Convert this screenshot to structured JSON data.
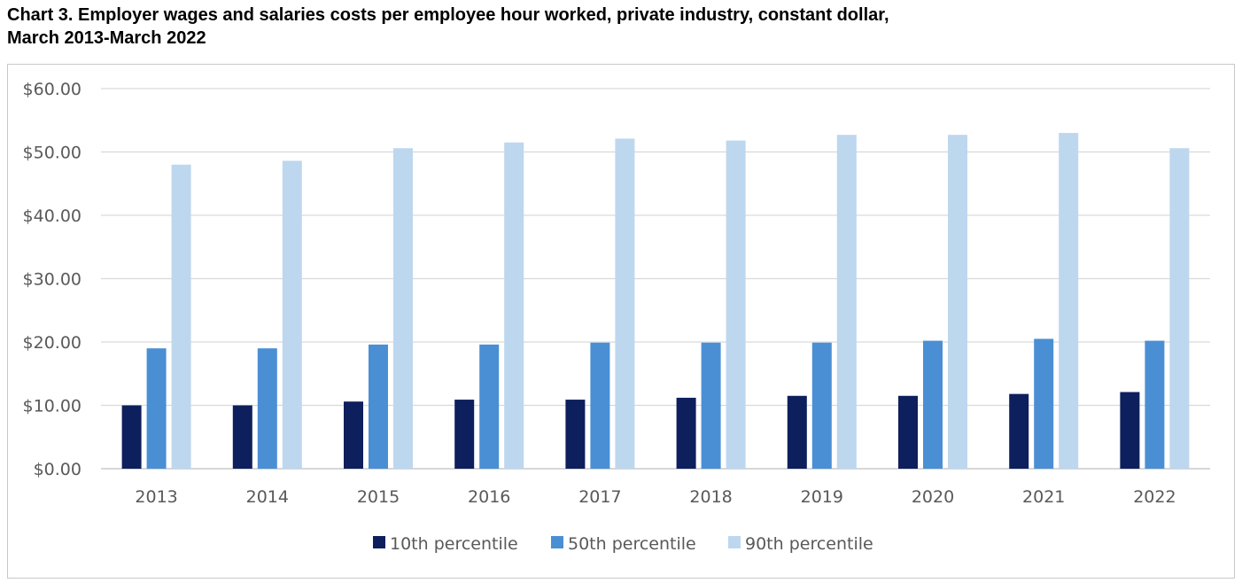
{
  "title_line1": "Chart 3. Employer wages and salaries  costs per employee hour worked, private industry, constant dollar,",
  "title_line2": "March 2013-March  2022",
  "chart_data": {
    "type": "bar",
    "categories": [
      "2013",
      "2014",
      "2015",
      "2016",
      "2017",
      "2018",
      "2019",
      "2020",
      "2021",
      "2022"
    ],
    "series": [
      {
        "name": "10th percentile",
        "color": "#0d1f5c",
        "values": [
          10.0,
          10.0,
          10.6,
          10.9,
          10.9,
          11.2,
          11.5,
          11.5,
          11.8,
          12.1
        ]
      },
      {
        "name": "50th percentile",
        "color": "#4a8fd4",
        "values": [
          19.0,
          19.0,
          19.6,
          19.6,
          19.9,
          19.9,
          19.9,
          20.2,
          20.5,
          20.2
        ]
      },
      {
        "name": "90th percentile",
        "color": "#bdd7ee",
        "values": [
          48.0,
          48.6,
          50.6,
          51.5,
          52.1,
          51.8,
          52.7,
          52.7,
          53.0,
          50.6
        ]
      }
    ],
    "yticks": [
      "$0.00",
      "$10.00",
      "$20.00",
      "$30.00",
      "$40.00",
      "$50.00",
      "$60.00"
    ],
    "ylim": [
      0,
      60
    ],
    "grid": true,
    "legend_position": "bottom"
  }
}
